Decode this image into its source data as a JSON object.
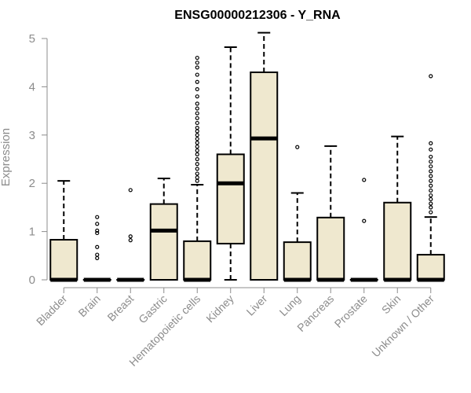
{
  "chart_data": {
    "type": "box",
    "title": "ENSG00000212306 - Y_RNA",
    "ylabel": "Expression",
    "ylim": [
      0,
      5
    ],
    "yticks": [
      0,
      1,
      2,
      3,
      4,
      5
    ],
    "box_fill": "#efe8cf",
    "categories": [
      "Bladder",
      "Brain",
      "Breast",
      "Gastric",
      "Hematopoietic cells",
      "Kidney",
      "Liver",
      "Lung",
      "Pancreas",
      "Prostate",
      "Skin",
      "Unknown / Other"
    ],
    "boxes": [
      {
        "q1": 0,
        "median": 0,
        "q3": 0.83,
        "whisker_low": 0,
        "whisker_high": 2.05,
        "outliers": []
      },
      {
        "q1": 0,
        "median": 0,
        "q3": 0,
        "whisker_low": 0,
        "whisker_high": 0,
        "outliers": [
          0.45,
          0.52,
          0.68,
          0.97,
          1.02,
          1.16,
          1.3
        ]
      },
      {
        "q1": 0,
        "median": 0,
        "q3": 0,
        "whisker_low": 0,
        "whisker_high": 0,
        "outliers": [
          0.82,
          0.9,
          1.86
        ]
      },
      {
        "q1": 0,
        "median": 1.02,
        "q3": 1.57,
        "whisker_low": 0,
        "whisker_high": 2.1,
        "outliers": []
      },
      {
        "q1": 0,
        "median": 0,
        "q3": 0.8,
        "whisker_low": 0,
        "whisker_high": 1.97,
        "outliers": [
          2.05,
          2.12,
          2.2,
          2.3,
          2.4,
          2.5,
          2.6,
          2.68,
          2.76,
          2.84,
          2.92,
          3.0,
          3.08,
          3.15,
          3.25,
          3.35,
          3.45,
          3.55,
          3.65,
          3.8,
          3.95,
          4.1,
          4.25,
          4.4,
          4.5,
          4.6
        ]
      },
      {
        "q1": 0.75,
        "median": 2.0,
        "q3": 2.6,
        "whisker_low": 0,
        "whisker_high": 4.82,
        "outliers": []
      },
      {
        "q1": 0,
        "median": 2.93,
        "q3": 4.3,
        "whisker_low": 0,
        "whisker_high": 5.12,
        "outliers": []
      },
      {
        "q1": 0,
        "median": 0,
        "q3": 0.78,
        "whisker_low": 0,
        "whisker_high": 1.8,
        "outliers": [
          2.75
        ]
      },
      {
        "q1": 0,
        "median": 0,
        "q3": 1.29,
        "whisker_low": 0,
        "whisker_high": 2.77,
        "outliers": []
      },
      {
        "q1": 0,
        "median": 0,
        "q3": 0,
        "whisker_low": 0,
        "whisker_high": 0,
        "outliers": [
          1.22,
          2.07
        ]
      },
      {
        "q1": 0,
        "median": 0,
        "q3": 1.6,
        "whisker_low": 0,
        "whisker_high": 2.97,
        "outliers": []
      },
      {
        "q1": 0,
        "median": 0,
        "q3": 0.52,
        "whisker_low": 0,
        "whisker_high": 1.3,
        "outliers": [
          1.4,
          1.5,
          1.58,
          1.67,
          1.75,
          1.85,
          1.95,
          2.05,
          2.15,
          2.25,
          2.35,
          2.45,
          2.55,
          2.7,
          2.83,
          4.22
        ]
      }
    ]
  }
}
